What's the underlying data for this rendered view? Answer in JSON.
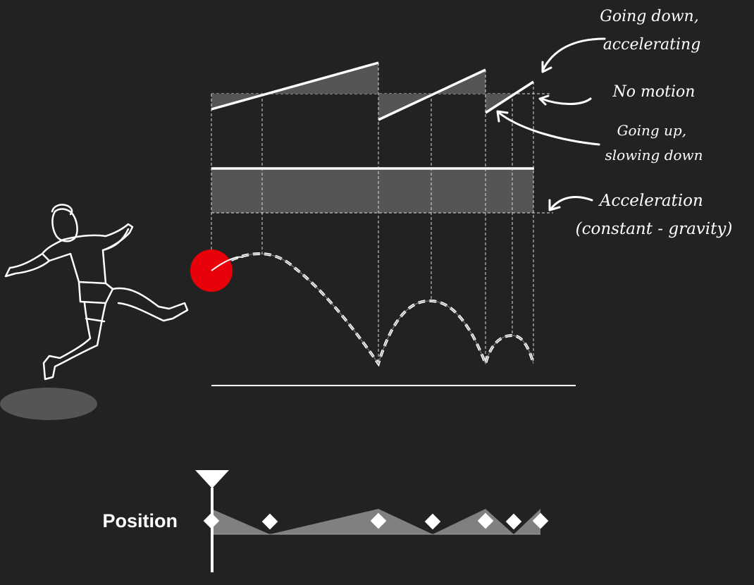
{
  "annotations": {
    "going_down": [
      "Going down,",
      "accelerating"
    ],
    "no_motion": "No motion",
    "going_up": [
      "Going up,",
      "slowing down"
    ],
    "acceleration": [
      "Acceleration",
      "(constant - gravity)"
    ]
  },
  "timeline": {
    "label": "Position",
    "keyframe_count": 7
  },
  "colors": {
    "background": "#222222",
    "ball": "#e8000b",
    "fill_gray": "#555555",
    "timeline_fill": "#808080",
    "line": "#ffffff"
  },
  "icons": [
    "player-figure-icon",
    "ball-icon",
    "playhead-icon",
    "keyframe-diamond-icon"
  ]
}
